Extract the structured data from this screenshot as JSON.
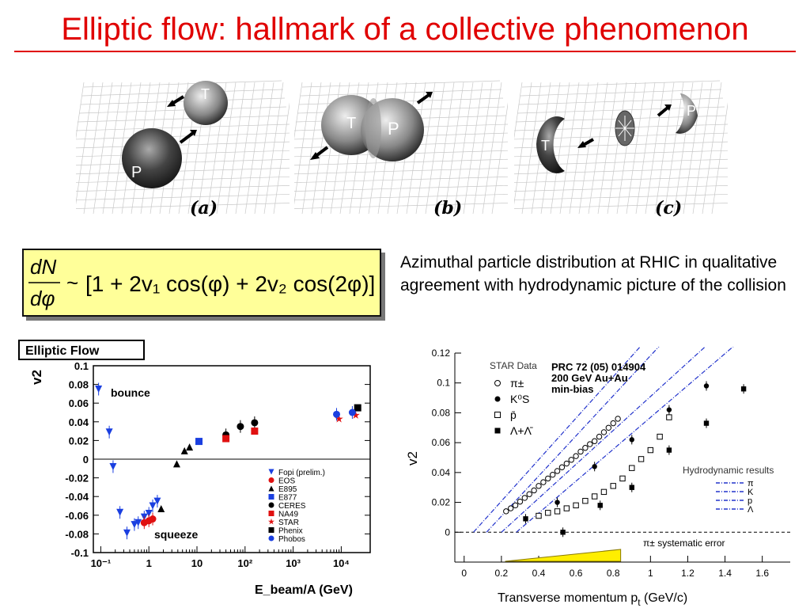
{
  "title": "Elliptic flow: hallmark of a collective phenomenon",
  "panels": [
    {
      "label": "(a)",
      "nuclei": [
        "T",
        "P"
      ]
    },
    {
      "label": "(b)",
      "nuclei": [
        "T",
        "P"
      ]
    },
    {
      "label": "(c)",
      "nuclei": [
        "T",
        "P"
      ]
    }
  ],
  "formula": {
    "numerator": "dN",
    "denominator": "dφ",
    "tilde": "~",
    "expression": "[1 + 2v₁ cos(φ) + 2v₂ cos(2φ)]"
  },
  "description": "Azimuthal particle distribution at RHIC in qualitative agreement with hydrodynamic picture of the collision",
  "chart_data": [
    {
      "type": "scatter",
      "title": "Elliptic Flow",
      "xlabel": "E_beam/A (GeV)",
      "ylabel": "v2",
      "xscale": "log",
      "xlim": [
        0.07,
        40000
      ],
      "ylim": [
        -0.1,
        0.1
      ],
      "xticks": [
        "10⁻¹",
        "1",
        "10",
        "10²",
        "10³",
        "10⁴"
      ],
      "yticks": [
        "0.1",
        "0.08",
        "0.06",
        "0.04",
        "0.02",
        "0",
        "-0.02",
        "-0.04",
        "-0.06",
        "-0.08",
        "-0.1"
      ],
      "annotations": [
        "bounce",
        "squeeze"
      ],
      "legend_position": "bottom-right",
      "series": [
        {
          "name": "Fopi (prelim.)",
          "marker": "triangle-down",
          "color": "#1a3fe0",
          "points": [
            [
              0.09,
              0.075
            ],
            [
              0.15,
              0.029
            ],
            [
              0.18,
              -0.008
            ],
            [
              0.25,
              -0.057
            ],
            [
              0.35,
              -0.079
            ],
            [
              0.5,
              -0.07
            ],
            [
              0.6,
              -0.068
            ],
            [
              0.8,
              -0.062
            ],
            [
              1.0,
              -0.058
            ],
            [
              1.2,
              -0.05
            ],
            [
              1.5,
              -0.045
            ]
          ]
        },
        {
          "name": "EOS",
          "marker": "circle",
          "color": "#e01010",
          "points": [
            [
              0.8,
              -0.068
            ],
            [
              1.0,
              -0.066
            ],
            [
              1.2,
              -0.064
            ]
          ]
        },
        {
          "name": "E895",
          "marker": "triangle-up",
          "color": "#000000",
          "points": [
            [
              1.8,
              -0.053
            ],
            [
              3.8,
              -0.005
            ],
            [
              5.5,
              0.009
            ],
            [
              7.0,
              0.013
            ]
          ]
        },
        {
          "name": "E877",
          "marker": "square",
          "color": "#1a3fe0",
          "points": [
            [
              11,
              0.019
            ]
          ]
        },
        {
          "name": "CERES",
          "marker": "circle",
          "color": "#000000",
          "points": [
            [
              40,
              0.026
            ],
            [
              80,
              0.035
            ],
            [
              158,
              0.039
            ]
          ]
        },
        {
          "name": "NA49",
          "marker": "square",
          "color": "#e01010",
          "points": [
            [
              40,
              0.022
            ],
            [
              158,
              0.03
            ]
          ]
        },
        {
          "name": "STAR",
          "marker": "star",
          "color": "#e01010",
          "points": [
            [
              9000,
              0.043
            ],
            [
              20000,
              0.047
            ]
          ]
        },
        {
          "name": "Phenix",
          "marker": "square",
          "color": "#000000",
          "points": [
            [
              22000,
              0.055
            ]
          ]
        },
        {
          "name": "Phobos",
          "marker": "circle",
          "color": "#1a3fe0",
          "points": [
            [
              8000,
              0.048
            ],
            [
              17000,
              0.05
            ]
          ]
        }
      ]
    },
    {
      "type": "scatter",
      "title": "",
      "xlabel": "Transverse momentum p",
      "xlabel_sub": "t",
      "xlabel_unit": " (GeV/c)",
      "ylabel": "v2",
      "xlim": [
        -0.05,
        1.75
      ],
      "ylim": [
        -0.02,
        0.12
      ],
      "xticks": [
        "0",
        "0.2",
        "0.4",
        "0.6",
        "0.8",
        "1",
        "1.2",
        "1.4",
        "1.6"
      ],
      "yticks": [
        "0.12",
        "0.1",
        "0.08",
        "0.06",
        "0.04",
        "0.02",
        "0"
      ],
      "info_lines": [
        "PRC 72 (05) 014904",
        "200 GeV Au+Au",
        "min-bias"
      ],
      "legend_title": "STAR Data",
      "legend": [
        "π±",
        "K⁰S",
        "p̄",
        "Λ+Λ̄"
      ],
      "hydro_title": "Hydrodynamic results",
      "hydro_legend": [
        "π",
        "K",
        "p",
        "Λ"
      ],
      "band_label": "π± systematic error",
      "series": [
        {
          "name": "π±",
          "marker": "open-circle",
          "x": [
            0.225,
            0.25,
            0.275,
            0.3,
            0.325,
            0.35,
            0.375,
            0.4,
            0.425,
            0.45,
            0.475,
            0.5,
            0.525,
            0.55,
            0.575,
            0.6,
            0.625,
            0.65,
            0.675,
            0.7,
            0.725,
            0.75,
            0.775,
            0.8,
            0.825
          ],
          "y": [
            0.014,
            0.016,
            0.018,
            0.0205,
            0.023,
            0.0255,
            0.028,
            0.031,
            0.0335,
            0.036,
            0.0385,
            0.041,
            0.0435,
            0.046,
            0.0485,
            0.051,
            0.054,
            0.0565,
            0.059,
            0.061,
            0.064,
            0.067,
            0.07,
            0.073,
            0.076
          ]
        },
        {
          "name": "K⁰S",
          "marker": "filled-circle",
          "x": [
            0.5,
            0.7,
            0.9,
            1.1,
            1.3
          ],
          "y": [
            0.02,
            0.044,
            0.062,
            0.082,
            0.098
          ]
        },
        {
          "name": "p̄",
          "marker": "open-square",
          "x": [
            0.4,
            0.45,
            0.5,
            0.55,
            0.6,
            0.65,
            0.7,
            0.75,
            0.8,
            0.85,
            0.9,
            0.95,
            1.0,
            1.05,
            1.1
          ],
          "y": [
            0.011,
            0.013,
            0.014,
            0.016,
            0.018,
            0.021,
            0.024,
            0.027,
            0.031,
            0.036,
            0.043,
            0.049,
            0.055,
            0.064,
            0.077
          ]
        },
        {
          "name": "Λ+Λ̄",
          "marker": "filled-square",
          "x": [
            0.33,
            0.53,
            0.73,
            0.9,
            1.1,
            1.3,
            1.5
          ],
          "y": [
            0.009,
            0.0,
            0.018,
            0.03,
            0.055,
            0.073,
            0.096
          ]
        }
      ]
    }
  ]
}
